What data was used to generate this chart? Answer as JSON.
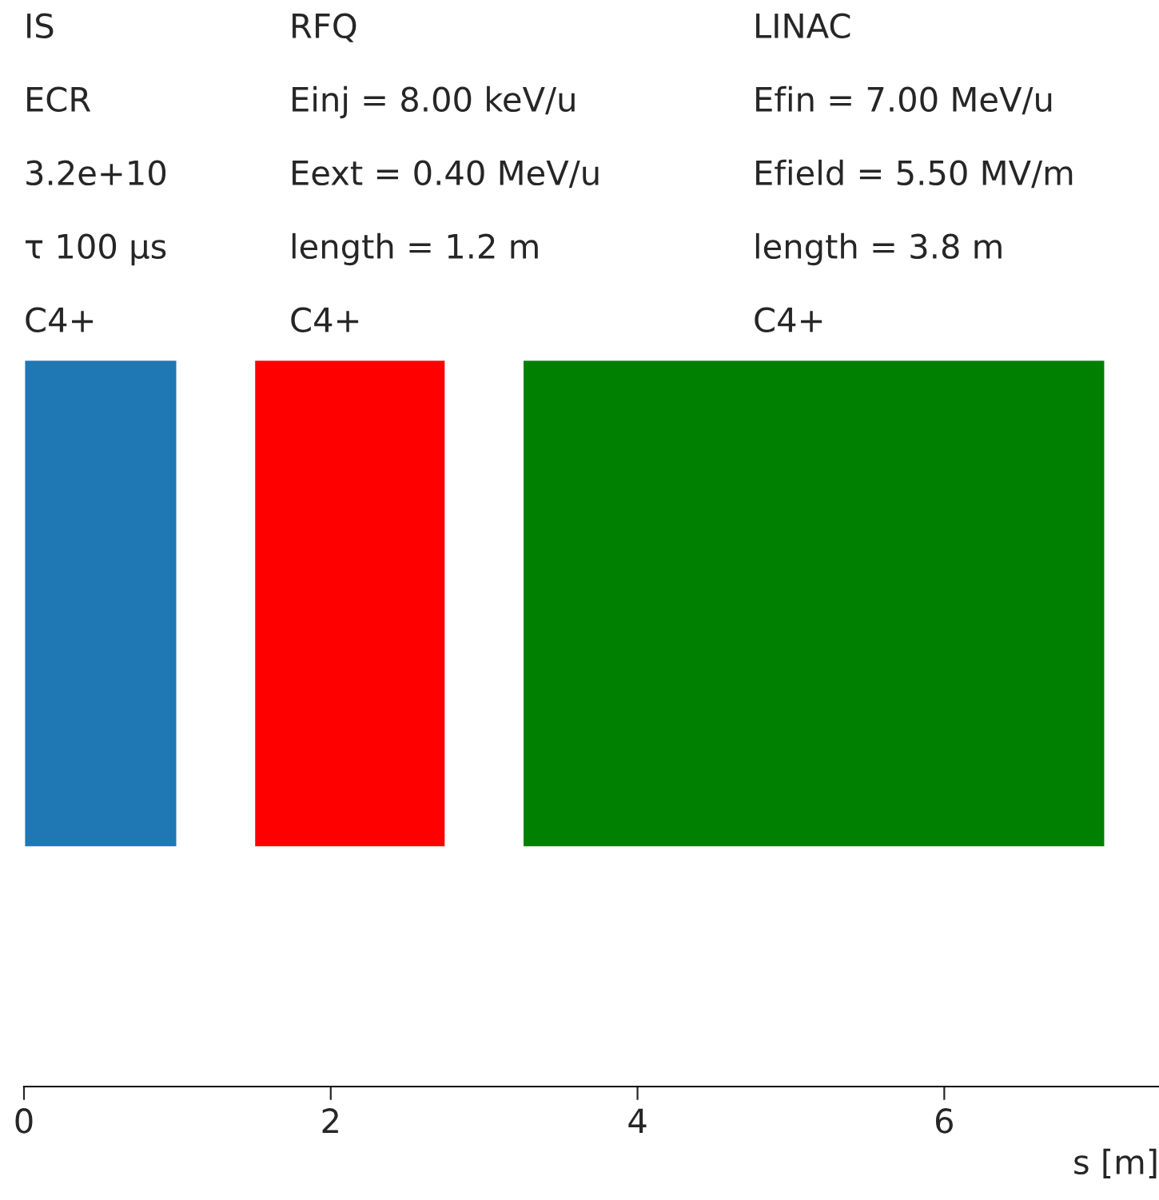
{
  "chart_data": {
    "type": "bar",
    "orientation": "horizontal",
    "categories": [
      null
    ],
    "series": [
      {
        "color": "#1f77b4",
        "base": [
          0
        ],
        "values": [
          1.0
        ]
      },
      {
        "color": "#ff0000",
        "base": [
          1.5
        ],
        "values": [
          1.25
        ]
      },
      {
        "color": "#008000",
        "base": [
          3.25
        ],
        "values": [
          3.8
        ]
      }
    ],
    "xlim": [
      0,
      7.4
    ],
    "xticks": [
      0,
      2,
      4,
      6
    ],
    "xlabel": "s [m]",
    "tick_labels": "x",
    "grid": false,
    "legend": false,
    "annotations": [
      "IS",
      "ECR",
      "3.2e+10",
      "τ 100 μs",
      "C4+",
      "RFQ",
      "Einj = 8.00 keV/u",
      "Eext = 0.40 MeV/u",
      "length = 1.2 m",
      "C4+",
      "LINAC",
      "Efin = 7.00 MeV/u",
      "Efield = 5.50 MV/m",
      "length = 3.8 m",
      "C4+"
    ]
  }
}
